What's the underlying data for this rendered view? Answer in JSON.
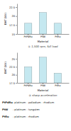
{
  "chart_data": [
    {
      "type": "bar",
      "title": "① 1,500 rpm, full load",
      "categories": [
        "PtPdRu",
        "PtW",
        "PtRu"
      ],
      "values": [
        18.0,
        21.0,
        18.0
      ],
      "x_label": "Material",
      "y_label": "BHT (kV)",
      "ylim": [
        15,
        23.5
      ],
      "yticks": [
        15,
        17.5,
        20,
        22.5
      ],
      "color": "#c5e8f0",
      "grid": false
    },
    {
      "type": "bar",
      "title": "② sharp acceleration",
      "categories": [
        "PtPdRu",
        "PtW",
        "PtRu"
      ],
      "values": [
        22.5,
        25.5,
        20.5
      ],
      "x_label": "Material",
      "y_label": "BHT (kV)",
      "ylim": [
        17.5,
        27
      ],
      "yticks": [
        17.5,
        20,
        22.5,
        25
      ],
      "color": "#c5e8f0",
      "grid": false,
      "annotations": [
        {
          "label": "PtPdRu",
          "text": ": platinum - palladium - rhodium"
        },
        {
          "label": "PtW",
          "text": ": platinum - tungsten"
        },
        {
          "label": "PtRu",
          "text": ": platinum - rhodium"
        }
      ]
    }
  ]
}
